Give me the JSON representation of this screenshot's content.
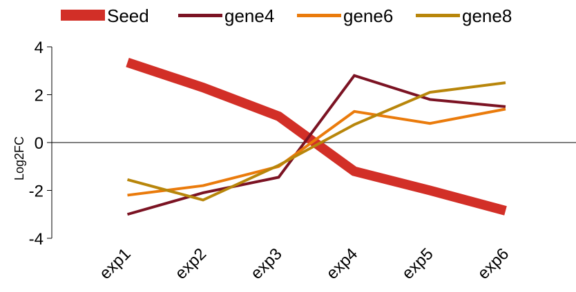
{
  "chart_data": {
    "type": "line",
    "categories": [
      "exp1",
      "exp2",
      "exp3",
      "exp4",
      "exp5",
      "exp6"
    ],
    "series": [
      {
        "name": "Seed",
        "values": [
          3.35,
          2.3,
          1.1,
          -1.2,
          -2.0,
          -2.85
        ],
        "color": "#d22f27",
        "emphasis": "thick"
      },
      {
        "name": "gene4",
        "values": [
          -3.0,
          -2.1,
          -1.45,
          2.8,
          1.8,
          1.5
        ],
        "color": "#7b1323"
      },
      {
        "name": "gene6",
        "values": [
          -2.2,
          -1.8,
          -1.0,
          1.3,
          0.8,
          1.4
        ],
        "color": "#ea7b0c"
      },
      {
        "name": "gene8",
        "values": [
          -1.55,
          -2.4,
          -0.95,
          0.75,
          2.1,
          2.5
        ],
        "color": "#b8860b"
      }
    ],
    "title": "",
    "xlabel": "",
    "ylabel": "Log2FC",
    "ylim": [
      -4,
      4
    ],
    "yticks": [
      -4,
      -2,
      0,
      2,
      4
    ],
    "ytick_labels": [
      "-4",
      "-2",
      "0",
      "2",
      "4"
    ],
    "zero_line": true,
    "legend_position": "top",
    "grid": false
  }
}
